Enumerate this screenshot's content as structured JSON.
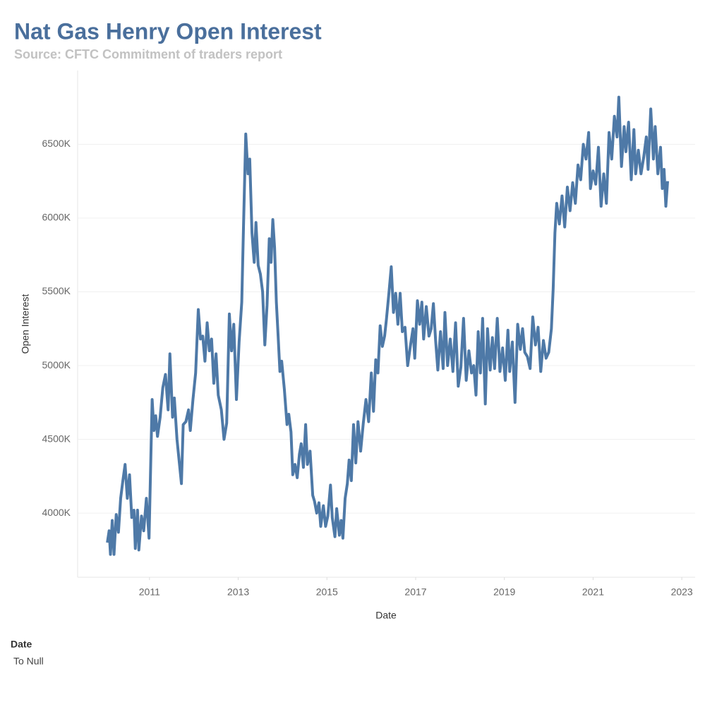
{
  "chart_data": {
    "type": "line",
    "title": "Nat Gas Henry Open Interest",
    "subtitle": "Source: CFTC Commitment of traders report",
    "x_label": "Date",
    "y_label": "Open Interest",
    "color": "#4e79a7",
    "grid": true,
    "filter": {
      "title": "Date",
      "value": "To Null"
    },
    "xlim": [
      2009.38,
      2023.3
    ],
    "xticks": [
      2011,
      2013,
      2015,
      2017,
      2019,
      2021,
      2023
    ],
    "ylim": [
      3565000,
      7000000
    ],
    "yticks": [
      {
        "value": 4000000,
        "label": "4000K"
      },
      {
        "value": 4500000,
        "label": "4500K"
      },
      {
        "value": 5000000,
        "label": "5000K"
      },
      {
        "value": 5500000,
        "label": "5500K"
      },
      {
        "value": 6000000,
        "label": "6000K"
      },
      {
        "value": 6500000,
        "label": "6500K"
      }
    ],
    "x": [
      2010.05,
      2010.09,
      2010.12,
      2010.16,
      2010.2,
      2010.25,
      2010.3,
      2010.35,
      2010.4,
      2010.45,
      2010.5,
      2010.55,
      2010.6,
      2010.65,
      2010.68,
      2010.73,
      2010.76,
      2010.82,
      2010.87,
      2010.93,
      2010.99,
      2011.06,
      2011.1,
      2011.14,
      2011.18,
      2011.24,
      2011.3,
      2011.36,
      2011.42,
      2011.46,
      2011.52,
      2011.56,
      2011.62,
      2011.66,
      2011.72,
      2011.76,
      2011.82,
      2011.88,
      2011.92,
      2011.98,
      2012.04,
      2012.1,
      2012.15,
      2012.2,
      2012.25,
      2012.3,
      2012.35,
      2012.4,
      2012.45,
      2012.5,
      2012.55,
      2012.62,
      2012.68,
      2012.74,
      2012.8,
      2012.85,
      2012.9,
      2012.96,
      2013.02,
      2013.08,
      2013.12,
      2013.17,
      2013.22,
      2013.26,
      2013.31,
      2013.36,
      2013.4,
      2013.45,
      2013.5,
      2013.55,
      2013.6,
      2013.65,
      2013.7,
      2013.74,
      2013.78,
      2013.82,
      2013.86,
      2013.9,
      2013.94,
      2013.98,
      2014.04,
      2014.1,
      2014.14,
      2014.19,
      2014.23,
      2014.28,
      2014.33,
      2014.38,
      2014.42,
      2014.47,
      2014.52,
      2014.56,
      2014.62,
      2014.68,
      2014.72,
      2014.77,
      2014.82,
      2014.86,
      2014.92,
      2014.97,
      2015.02,
      2015.08,
      2015.12,
      2015.18,
      2015.22,
      2015.28,
      2015.32,
      2015.36,
      2015.41,
      2015.46,
      2015.5,
      2015.55,
      2015.6,
      2015.65,
      2015.7,
      2015.76,
      2015.82,
      2015.88,
      2015.94,
      2016.0,
      2016.05,
      2016.1,
      2016.15,
      2016.2,
      2016.25,
      2016.3,
      2016.34,
      2016.4,
      2016.45,
      2016.5,
      2016.55,
      2016.6,
      2016.65,
      2016.7,
      2016.76,
      2016.82,
      2016.88,
      2016.94,
      2016.98,
      2017.04,
      2017.09,
      2017.14,
      2017.18,
      2017.24,
      2017.3,
      2017.35,
      2017.4,
      2017.45,
      2017.5,
      2017.56,
      2017.62,
      2017.66,
      2017.72,
      2017.78,
      2017.84,
      2017.9,
      2017.96,
      2018.02,
      2018.08,
      2018.14,
      2018.2,
      2018.26,
      2018.31,
      2018.36,
      2018.41,
      2018.46,
      2018.51,
      2018.57,
      2018.62,
      2018.68,
      2018.73,
      2018.78,
      2018.84,
      2018.9,
      2018.96,
      2019.02,
      2019.08,
      2019.12,
      2019.18,
      2019.24,
      2019.3,
      2019.36,
      2019.41,
      2019.46,
      2019.52,
      2019.58,
      2019.64,
      2019.7,
      2019.76,
      2019.82,
      2019.88,
      2019.94,
      2020.0,
      2020.06,
      2020.1,
      2020.14,
      2020.18,
      2020.24,
      2020.3,
      2020.36,
      2020.42,
      2020.48,
      2020.54,
      2020.6,
      2020.66,
      2020.72,
      2020.78,
      2020.84,
      2020.9,
      2020.94,
      2021.0,
      2021.06,
      2021.12,
      2021.18,
      2021.24,
      2021.3,
      2021.36,
      2021.42,
      2021.48,
      2021.54,
      2021.58,
      2021.64,
      2021.7,
      2021.74,
      2021.8,
      2021.86,
      2021.92,
      2021.96,
      2022.02,
      2022.08,
      2022.14,
      2022.2,
      2022.24,
      2022.3,
      2022.36,
      2022.4,
      2022.46,
      2022.52,
      2022.56,
      2022.6,
      2022.64,
      2022.68
    ],
    "values": [
      3800000,
      3880000,
      3720000,
      3950000,
      3720000,
      3990000,
      3870000,
      4100000,
      4220000,
      4330000,
      4100000,
      4260000,
      3970000,
      4020000,
      3760000,
      4020000,
      3750000,
      3980000,
      3880000,
      4100000,
      3830000,
      4770000,
      4560000,
      4660000,
      4520000,
      4650000,
      4850000,
      4940000,
      4700000,
      5080000,
      4650000,
      4780000,
      4500000,
      4380000,
      4200000,
      4600000,
      4620000,
      4700000,
      4560000,
      4770000,
      4950000,
      5380000,
      5180000,
      5200000,
      5030000,
      5290000,
      5100000,
      5180000,
      4880000,
      5080000,
      4800000,
      4700000,
      4500000,
      4610000,
      5350000,
      5100000,
      5280000,
      4770000,
      5160000,
      5430000,
      5950000,
      6570000,
      6300000,
      6400000,
      5900000,
      5700000,
      5970000,
      5680000,
      5620000,
      5500000,
      5140000,
      5410000,
      5860000,
      5700000,
      5990000,
      5800000,
      5430000,
      5200000,
      4960000,
      5030000,
      4840000,
      4600000,
      4670000,
      4550000,
      4260000,
      4330000,
      4240000,
      4400000,
      4470000,
      4310000,
      4600000,
      4330000,
      4420000,
      4120000,
      4080000,
      4000000,
      4070000,
      3910000,
      4050000,
      3910000,
      3980000,
      4190000,
      3970000,
      3840000,
      4030000,
      3850000,
      3950000,
      3830000,
      4100000,
      4200000,
      4360000,
      4220000,
      4600000,
      4340000,
      4620000,
      4420000,
      4610000,
      4770000,
      4620000,
      4950000,
      4690000,
      5040000,
      4950000,
      5270000,
      5130000,
      5200000,
      5310000,
      5500000,
      5670000,
      5360000,
      5490000,
      5280000,
      5490000,
      5230000,
      5260000,
      5000000,
      5130000,
      5250000,
      5050000,
      5440000,
      5280000,
      5430000,
      5180000,
      5400000,
      5200000,
      5250000,
      5420000,
      5170000,
      4970000,
      5230000,
      4980000,
      5360000,
      5000000,
      5180000,
      4960000,
      5290000,
      4860000,
      4990000,
      5320000,
      4900000,
      5100000,
      4950000,
      5000000,
      4800000,
      5230000,
      4950000,
      5320000,
      4740000,
      5250000,
      4970000,
      5190000,
      4980000,
      5320000,
      4960000,
      5120000,
      4900000,
      5240000,
      4960000,
      5160000,
      4750000,
      5280000,
      5110000,
      5250000,
      5090000,
      5060000,
      4980000,
      5330000,
      5140000,
      5260000,
      4960000,
      5170000,
      5050000,
      5090000,
      5250000,
      5520000,
      5900000,
      6100000,
      5960000,
      6150000,
      5940000,
      6210000,
      6050000,
      6240000,
      6100000,
      6360000,
      6260000,
      6500000,
      6400000,
      6580000,
      6200000,
      6320000,
      6230000,
      6480000,
      6080000,
      6300000,
      6100000,
      6580000,
      6400000,
      6690000,
      6550000,
      6820000,
      6350000,
      6620000,
      6450000,
      6650000,
      6260000,
      6600000,
      6300000,
      6460000,
      6300000,
      6410000,
      6550000,
      6330000,
      6740000,
      6400000,
      6620000,
      6300000,
      6480000,
      6200000,
      6330000,
      6080000,
      6250000
    ]
  }
}
